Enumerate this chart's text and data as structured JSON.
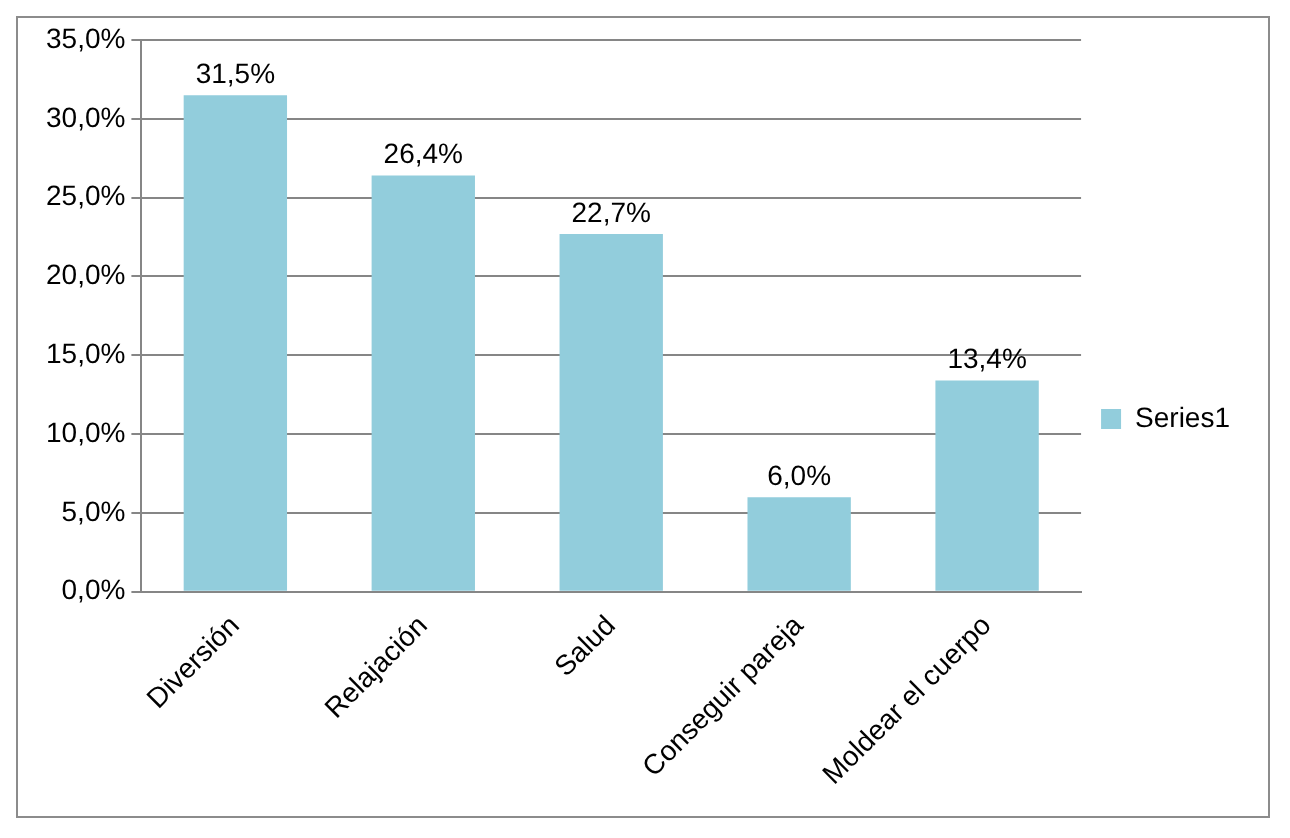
{
  "chart_data": {
    "type": "bar",
    "categories": [
      "Diversión",
      "Relajación",
      "Salud",
      "Conseguir pareja",
      "Moldear el cuerpo"
    ],
    "series": [
      {
        "name": "Series1",
        "color": "#92cddc",
        "values": [
          31.5,
          26.4,
          22.7,
          6.0,
          13.4
        ],
        "value_labels": [
          "31,5%",
          "26,4%",
          "22,7%",
          "6,0%",
          "13,4%"
        ]
      }
    ],
    "ylim": [
      0,
      35
    ],
    "yticks": [
      {
        "value": 0,
        "label": "0,0%"
      },
      {
        "value": 5,
        "label": "5,0%"
      },
      {
        "value": 10,
        "label": "10,0%"
      },
      {
        "value": 15,
        "label": "15,0%"
      },
      {
        "value": 20,
        "label": "20,0%"
      },
      {
        "value": 25,
        "label": "25,0%"
      },
      {
        "value": 30,
        "label": "30,0%"
      },
      {
        "value": 35,
        "label": "35,0%"
      }
    ],
    "grid": "y",
    "legend": "right"
  }
}
